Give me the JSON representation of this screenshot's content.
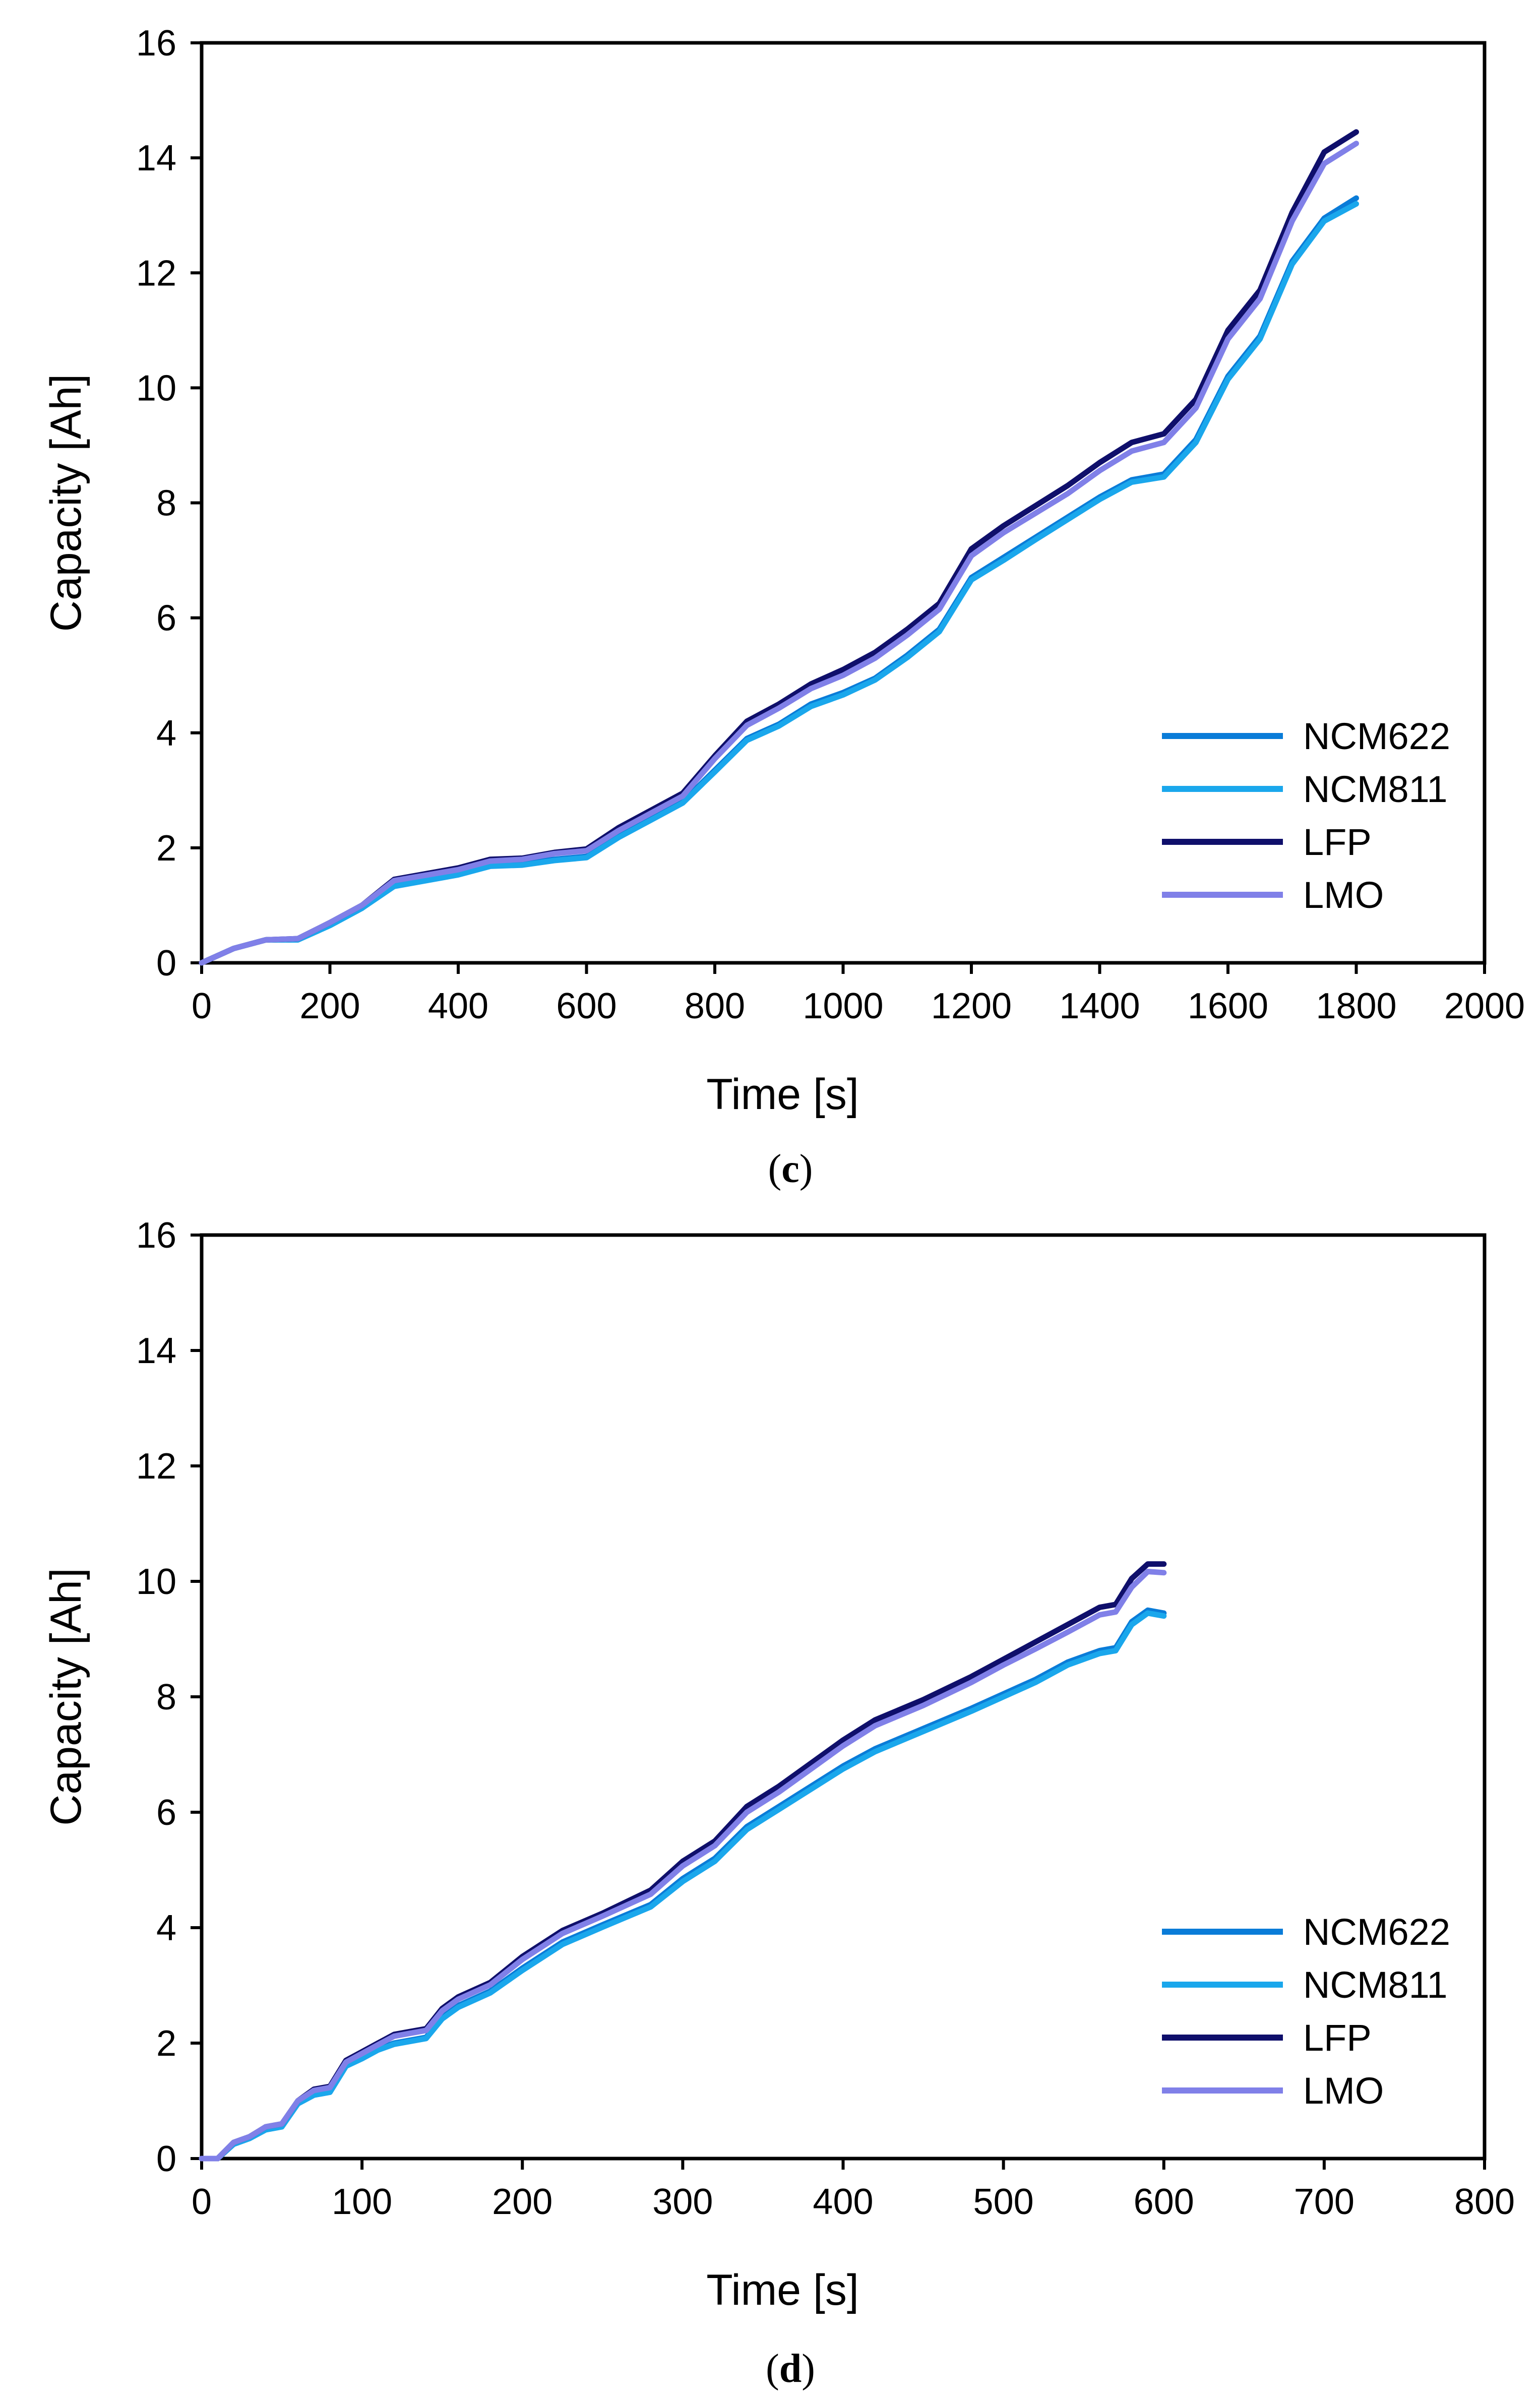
{
  "chart_data": [
    {
      "type": "line",
      "panel": "c",
      "panel_label": "c",
      "title": "",
      "xlabel": "Time [s]",
      "ylabel": "Capacity [Ah]",
      "xlim": [
        0,
        2000
      ],
      "ylim": [
        0,
        16
      ],
      "xticks": [
        "0",
        "200",
        "400",
        "600",
        "800",
        "1000",
        "1200",
        "1400",
        "1600",
        "1800",
        "2000"
      ],
      "yticks": [
        "0",
        "2",
        "4",
        "6",
        "8",
        "10",
        "12",
        "14",
        "16"
      ],
      "grid": false,
      "legend_position": "bottom-right",
      "series": [
        {
          "name": "NCM622",
          "color": "#0A7CD8",
          "x": [
            0,
            50,
            100,
            150,
            200,
            250,
            300,
            400,
            450,
            500,
            550,
            600,
            650,
            700,
            750,
            800,
            850,
            900,
            950,
            1000,
            1050,
            1100,
            1150,
            1200,
            1250,
            1300,
            1350,
            1400,
            1450,
            1500,
            1550,
            1600,
            1650,
            1700,
            1750,
            1800
          ],
          "y": [
            0,
            0.25,
            0.4,
            0.4,
            0.65,
            0.95,
            1.35,
            1.55,
            1.7,
            1.72,
            1.8,
            1.85,
            2.2,
            2.5,
            2.8,
            3.35,
            3.9,
            4.15,
            4.5,
            4.7,
            4.95,
            5.35,
            5.8,
            6.7,
            7.05,
            7.4,
            7.75,
            8.1,
            8.4,
            8.5,
            9.1,
            10.2,
            10.9,
            12.2,
            12.95,
            13.3
          ]
        },
        {
          "name": "NCM811",
          "color": "#1AA7EC",
          "x": [
            0,
            50,
            100,
            150,
            200,
            250,
            300,
            400,
            450,
            500,
            550,
            600,
            650,
            700,
            750,
            800,
            850,
            900,
            950,
            1000,
            1050,
            1100,
            1150,
            1200,
            1250,
            1300,
            1350,
            1400,
            1450,
            1500,
            1550,
            1600,
            1650,
            1700,
            1750,
            1800
          ],
          "y": [
            0,
            0.25,
            0.4,
            0.4,
            0.65,
            0.95,
            1.33,
            1.53,
            1.68,
            1.7,
            1.78,
            1.83,
            2.18,
            2.48,
            2.78,
            3.32,
            3.87,
            4.12,
            4.46,
            4.66,
            4.92,
            5.31,
            5.76,
            6.66,
            7.0,
            7.36,
            7.71,
            8.06,
            8.36,
            8.45,
            9.05,
            10.15,
            10.85,
            12.15,
            12.9,
            13.2
          ]
        },
        {
          "name": "LFP",
          "color": "#0F0F6B",
          "x": [
            0,
            50,
            100,
            150,
            200,
            250,
            300,
            400,
            450,
            500,
            550,
            600,
            650,
            700,
            750,
            800,
            850,
            900,
            950,
            1000,
            1050,
            1100,
            1150,
            1200,
            1250,
            1300,
            1350,
            1400,
            1450,
            1500,
            1550,
            1600,
            1650,
            1700,
            1750,
            1800
          ],
          "y": [
            0,
            0.25,
            0.4,
            0.42,
            0.7,
            1.0,
            1.45,
            1.65,
            1.8,
            1.82,
            1.92,
            1.98,
            2.35,
            2.65,
            2.95,
            3.6,
            4.2,
            4.5,
            4.85,
            5.1,
            5.4,
            5.8,
            6.25,
            7.2,
            7.6,
            7.95,
            8.3,
            8.7,
            9.05,
            9.2,
            9.8,
            11.0,
            11.7,
            13.05,
            14.1,
            14.45
          ]
        },
        {
          "name": "LMO",
          "color": "#8080E8",
          "x": [
            0,
            50,
            100,
            150,
            200,
            250,
            300,
            400,
            450,
            500,
            550,
            600,
            650,
            700,
            750,
            800,
            850,
            900,
            950,
            1000,
            1050,
            1100,
            1150,
            1200,
            1250,
            1300,
            1350,
            1400,
            1450,
            1500,
            1550,
            1600,
            1650,
            1700,
            1750,
            1800
          ],
          "y": [
            0,
            0.25,
            0.4,
            0.42,
            0.7,
            1.0,
            1.43,
            1.62,
            1.77,
            1.8,
            1.9,
            1.95,
            2.3,
            2.6,
            2.9,
            3.55,
            4.13,
            4.43,
            4.77,
            5.0,
            5.3,
            5.7,
            6.15,
            7.08,
            7.48,
            7.82,
            8.16,
            8.56,
            8.9,
            9.05,
            9.65,
            10.85,
            11.55,
            12.9,
            13.9,
            14.25
          ]
        }
      ]
    },
    {
      "type": "line",
      "panel": "d",
      "panel_label": "d",
      "title": "",
      "xlabel": "Time [s]",
      "ylabel": "Capacity [Ah]",
      "xlim": [
        0,
        800
      ],
      "ylim": [
        0,
        16
      ],
      "xticks": [
        "0",
        "100",
        "200",
        "300",
        "400",
        "500",
        "600",
        "700",
        "800"
      ],
      "yticks": [
        "0",
        "2",
        "4",
        "6",
        "8",
        "10",
        "12",
        "14",
        "16"
      ],
      "grid": false,
      "legend_position": "bottom-right",
      "series": [
        {
          "name": "NCM622",
          "color": "#0A7CD8",
          "x": [
            0,
            10,
            20,
            30,
            40,
            50,
            60,
            70,
            80,
            90,
            100,
            110,
            120,
            130,
            140,
            150,
            160,
            180,
            200,
            225,
            250,
            280,
            300,
            320,
            340,
            360,
            380,
            400,
            420,
            450,
            480,
            500,
            520,
            540,
            560,
            570,
            580,
            590,
            600
          ],
          "y": [
            0,
            0,
            0.25,
            0.35,
            0.5,
            0.55,
            0.95,
            1.1,
            1.15,
            1.6,
            1.75,
            1.9,
            2.0,
            2.05,
            2.1,
            2.45,
            2.65,
            2.9,
            3.3,
            3.75,
            4.05,
            4.4,
            4.85,
            5.2,
            5.75,
            6.1,
            6.45,
            6.8,
            7.1,
            7.45,
            7.8,
            8.05,
            8.3,
            8.6,
            8.8,
            8.85,
            9.3,
            9.5,
            9.45
          ]
        },
        {
          "name": "NCM811",
          "color": "#1AA7EC",
          "x": [
            0,
            10,
            20,
            30,
            40,
            50,
            60,
            70,
            80,
            90,
            100,
            110,
            120,
            130,
            140,
            150,
            160,
            180,
            200,
            225,
            250,
            280,
            300,
            320,
            340,
            360,
            380,
            400,
            420,
            450,
            480,
            500,
            520,
            540,
            560,
            570,
            580,
            590,
            600
          ],
          "y": [
            0,
            0,
            0.25,
            0.35,
            0.5,
            0.55,
            0.95,
            1.1,
            1.15,
            1.6,
            1.73,
            1.88,
            1.98,
            2.03,
            2.08,
            2.42,
            2.62,
            2.87,
            3.26,
            3.71,
            4.01,
            4.36,
            4.8,
            5.15,
            5.7,
            6.05,
            6.4,
            6.75,
            7.05,
            7.4,
            7.75,
            8.0,
            8.25,
            8.55,
            8.75,
            8.8,
            9.25,
            9.45,
            9.4
          ]
        },
        {
          "name": "LFP",
          "color": "#0F0F6B",
          "x": [
            0,
            10,
            20,
            30,
            40,
            50,
            60,
            70,
            80,
            90,
            100,
            110,
            120,
            130,
            140,
            150,
            160,
            180,
            200,
            225,
            250,
            280,
            300,
            320,
            340,
            360,
            380,
            400,
            420,
            450,
            480,
            500,
            520,
            540,
            560,
            570,
            580,
            590,
            600
          ],
          "y": [
            0,
            0,
            0.28,
            0.38,
            0.55,
            0.6,
            1.0,
            1.2,
            1.25,
            1.7,
            1.85,
            2.0,
            2.15,
            2.2,
            2.25,
            2.6,
            2.8,
            3.05,
            3.5,
            3.95,
            4.25,
            4.65,
            5.15,
            5.5,
            6.1,
            6.45,
            6.85,
            7.25,
            7.6,
            7.95,
            8.35,
            8.65,
            8.95,
            9.25,
            9.55,
            9.6,
            10.05,
            10.3,
            10.3
          ]
        },
        {
          "name": "LMO",
          "color": "#8080E8",
          "x": [
            0,
            10,
            20,
            30,
            40,
            50,
            60,
            70,
            80,
            90,
            100,
            110,
            120,
            130,
            140,
            150,
            160,
            180,
            200,
            225,
            250,
            280,
            300,
            320,
            340,
            360,
            380,
            400,
            420,
            450,
            480,
            500,
            520,
            540,
            560,
            570,
            580,
            590,
            600
          ],
          "y": [
            0,
            0,
            0.28,
            0.38,
            0.55,
            0.6,
            1.0,
            1.18,
            1.23,
            1.67,
            1.82,
            1.97,
            2.12,
            2.17,
            2.22,
            2.56,
            2.76,
            3.01,
            3.45,
            3.9,
            4.2,
            4.58,
            5.07,
            5.42,
            6.0,
            6.35,
            6.75,
            7.15,
            7.5,
            7.85,
            8.25,
            8.55,
            8.83,
            9.12,
            9.42,
            9.47,
            9.9,
            10.17,
            10.15
          ]
        }
      ]
    }
  ]
}
